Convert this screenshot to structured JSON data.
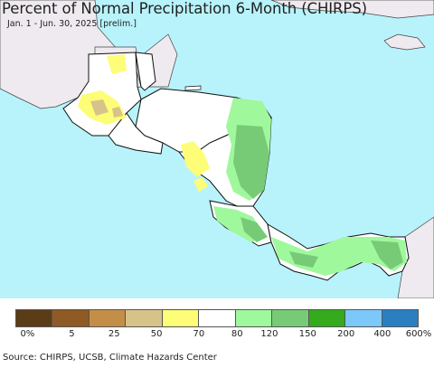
{
  "title": "Percent of Normal Precipitation 6-Month (CHIRPS)",
  "subtitle": "Jan. 1 - Jun. 30, 2025 [prelim.]",
  "source": "Source: CHIRPS, UCSB, Climate Hazards Center",
  "colors": {
    "ocean": "#b8f3fb",
    "outside_land": "#efeaef",
    "normal": "#ffffff",
    "border": "#111111"
  },
  "legend": {
    "colors": [
      "#5a3d16",
      "#8f5a23",
      "#c38f48",
      "#d7c38a",
      "#fdfd78",
      "#ffffff",
      "#a0f89c",
      "#77cb77",
      "#34aa1c",
      "#7cc8f8",
      "#2a7fc0"
    ],
    "labels": [
      "0%",
      "5",
      "25",
      "50",
      "70",
      "80",
      "120",
      "150",
      "200",
      "400",
      "600%"
    ]
  }
}
